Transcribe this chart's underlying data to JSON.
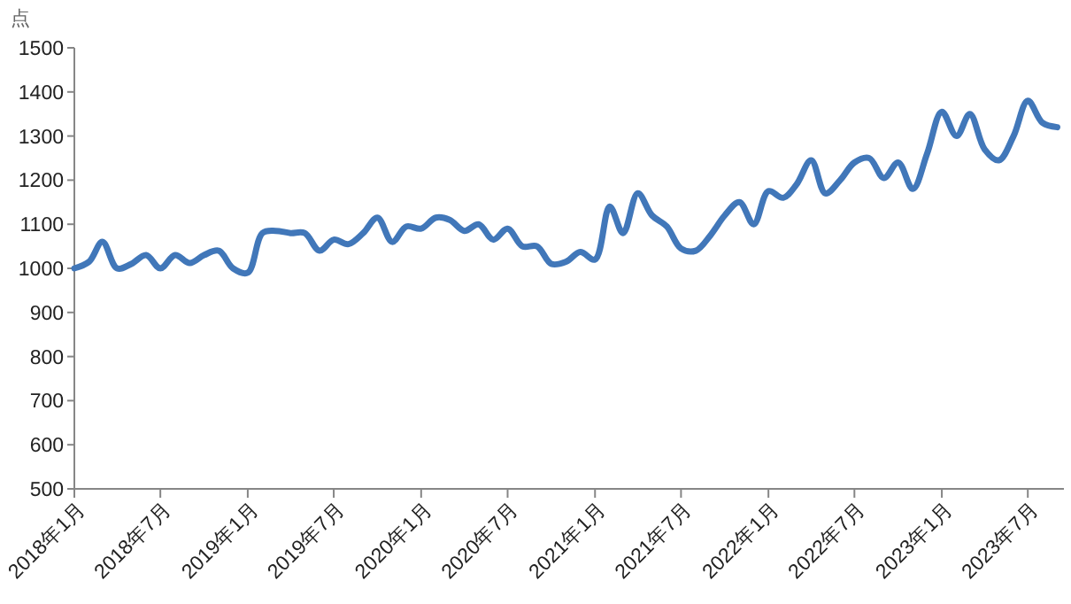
{
  "chart_data": {
    "type": "line",
    "ylabel": "点",
    "x": [
      "2018-01",
      "2018-02",
      "2018-03",
      "2018-04",
      "2018-05",
      "2018-06",
      "2018-07",
      "2018-08",
      "2018-09",
      "2018-10",
      "2018-11",
      "2018-12",
      "2019-01",
      "2019-02",
      "2019-03",
      "2019-04",
      "2019-05",
      "2019-06",
      "2019-07",
      "2019-08",
      "2019-09",
      "2019-10",
      "2019-11",
      "2019-12",
      "2020-01",
      "2020-02",
      "2020-03",
      "2020-04",
      "2020-05",
      "2020-06",
      "2020-07",
      "2020-08",
      "2020-09",
      "2020-10",
      "2020-11",
      "2020-12",
      "2021-01",
      "2021-02",
      "2021-03",
      "2021-04",
      "2021-05",
      "2021-06",
      "2021-07",
      "2021-08",
      "2021-09",
      "2021-10",
      "2021-11",
      "2021-12",
      "2022-01",
      "2022-02",
      "2022-03",
      "2022-04",
      "2022-05",
      "2022-06",
      "2022-07",
      "2022-08",
      "2022-09",
      "2022-10",
      "2022-11",
      "2022-12",
      "2023-01",
      "2023-02",
      "2023-03",
      "2023-04",
      "2023-05",
      "2023-06",
      "2023-07",
      "2023-08",
      "2023-09"
    ],
    "series": [
      {
        "color": "#4177b9",
        "values": [
          1000,
          1015,
          1060,
          1000,
          1010,
          1030,
          1000,
          1030,
          1012,
          1030,
          1040,
          1000,
          990,
          1080,
          1085,
          1080,
          1080,
          1040,
          1065,
          1055,
          1080,
          1115,
          1060,
          1095,
          1090,
          1115,
          1110,
          1085,
          1100,
          1065,
          1090,
          1050,
          1050,
          1010,
          1015,
          1037,
          1020,
          1140,
          1080,
          1170,
          1120,
          1095,
          1045,
          1040,
          1075,
          1120,
          1150,
          1100,
          1175,
          1160,
          1190,
          1245,
          1170,
          1200,
          1240,
          1250,
          1205,
          1240,
          1180,
          1260,
          1355,
          1300,
          1350,
          1270,
          1245,
          1300,
          1380,
          1330,
          1320
        ]
      }
    ],
    "xlim": [
      "2018-01",
      "2023-09-15"
    ],
    "xticks": [
      {
        "value": "2018-01",
        "label": "2018年1月"
      },
      {
        "value": "2018-07",
        "label": "2018年7月"
      },
      {
        "value": "2019-01",
        "label": "2019年1月"
      },
      {
        "value": "2019-07",
        "label": "2019年7月"
      },
      {
        "value": "2020-01",
        "label": "2020年1月"
      },
      {
        "value": "2020-07",
        "label": "2020年7月"
      },
      {
        "value": "2021-01",
        "label": "2021年1月"
      },
      {
        "value": "2021-07",
        "label": "2021年7月"
      },
      {
        "value": "2022-01",
        "label": "2022年1月"
      },
      {
        "value": "2022-07",
        "label": "2022年7月"
      },
      {
        "value": "2023-01",
        "label": "2023年1月"
      },
      {
        "value": "2023-07",
        "label": "2023年7月"
      }
    ],
    "ylim": [
      500,
      1500
    ],
    "yticks": [
      500,
      600,
      700,
      800,
      900,
      1000,
      1100,
      1200,
      1300,
      1400,
      1500
    ],
    "grid": false,
    "line_style": "solid",
    "marker": "none"
  }
}
